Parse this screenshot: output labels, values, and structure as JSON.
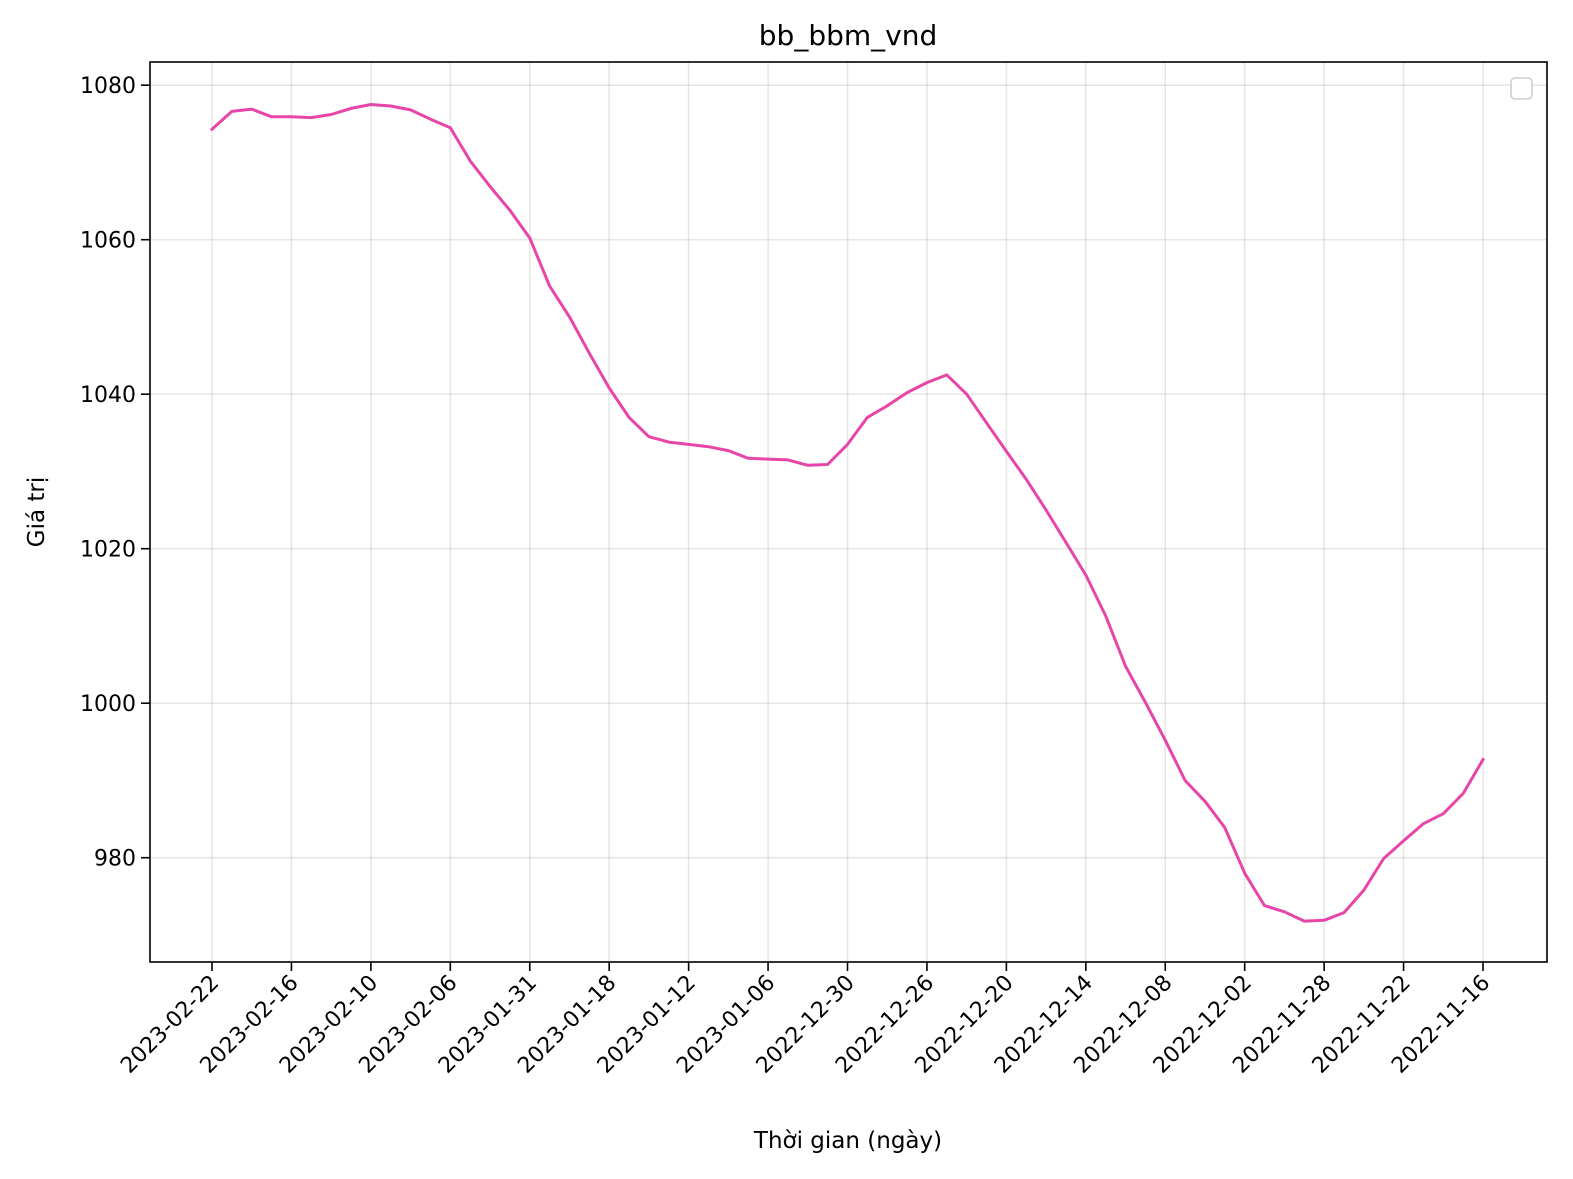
{
  "chart_data": {
    "type": "line",
    "title": "bb_bbm_vnd",
    "xlabel": "Thời gian (ngày)",
    "ylabel": "Giá trị",
    "x_ticks": [
      "2023-02-22",
      "2023-02-16",
      "2023-02-10",
      "2023-02-06",
      "2023-01-31",
      "2023-01-18",
      "2023-01-12",
      "2023-01-06",
      "2022-12-30",
      "2022-12-26",
      "2022-12-20",
      "2022-12-14",
      "2022-12-08",
      "2022-12-02",
      "2022-11-28",
      "2022-11-22",
      "2022-11-16"
    ],
    "y_ticks": [
      980,
      1000,
      1020,
      1040,
      1060,
      1080
    ],
    "ylim": [
      966.5,
      1083
    ],
    "grid": true,
    "legend": "top-right (empty)",
    "series": [
      {
        "color": "#e845a8",
        "values": [
          1074.3,
          1076.6,
          1076.9,
          1075.9,
          1075.9,
          1075.8,
          1076.2,
          1077.0,
          1077.5,
          1077.3,
          1076.8,
          1075.6,
          1074.5,
          1070.2,
          1066.9,
          1063.8,
          1060.2,
          1054.0,
          1050.0,
          1045.3,
          1040.8,
          1037.0,
          1034.5,
          1033.8,
          1033.5,
          1033.2,
          1032.7,
          1031.7,
          1031.6,
          1031.5,
          1030.8,
          1030.9,
          1033.5,
          1037.0,
          1038.5,
          1040.2,
          1041.5,
          1042.5,
          1040.0,
          1036.3,
          1032.6,
          1029.0,
          1025.0,
          1020.8,
          1016.6,
          1011.3,
          1004.8,
          1000.1,
          995.2,
          990.0,
          987.3,
          983.9,
          978.0,
          973.8,
          973.0,
          971.8,
          971.9,
          972.9,
          975.8,
          979.9,
          982.2,
          984.4,
          985.7,
          988.3,
          992.7
        ]
      }
    ]
  }
}
